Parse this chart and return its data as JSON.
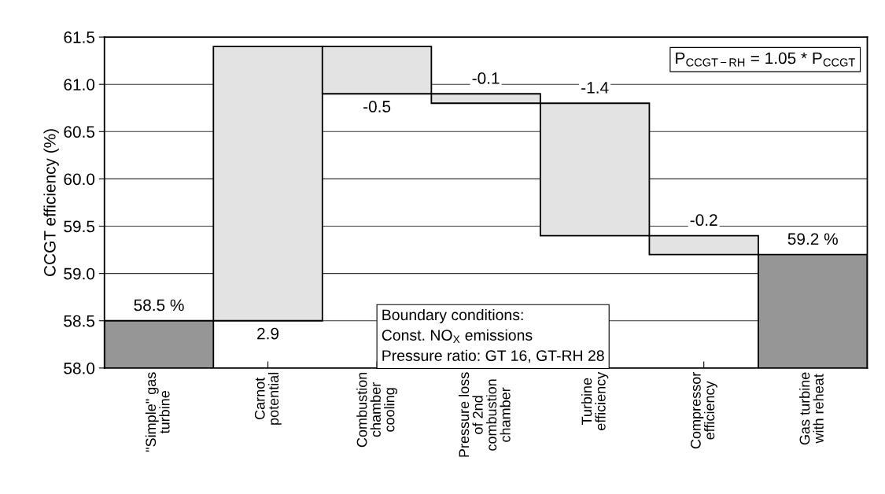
{
  "chart_data": {
    "type": "bar",
    "categories": [
      "\"Simple\" gas\nturbine",
      "Carnot\npotential",
      "Combustion\nchamber\ncooling",
      "Pressure loss\nof 2nd\ncombustion\nchamber",
      "Turbine\nefficiency",
      "Compressor\nefficiency",
      "Gas turbine\nwith reheat"
    ],
    "values": [
      58.5,
      2.9,
      -0.5,
      -0.1,
      -1.4,
      -0.2,
      59.2
    ],
    "base": [
      null,
      58.5,
      61.4,
      60.9,
      60.8,
      59.4,
      null
    ],
    "colors": [
      "#969696",
      "#e3e3e3",
      "#e3e3e3",
      "#e3e3e3",
      "#e3e3e3",
      "#e3e3e3",
      "#969696"
    ],
    "value_labels": [
      "58.5 %",
      "2.9",
      "-0.5",
      "-0.1",
      "-1.4",
      "-0.2",
      "59.2 %"
    ],
    "ylabel": "CCGT efficiency (%)",
    "ylim": [
      58.0,
      61.5
    ],
    "yticks": [
      {
        "value": 58.0,
        "label": "58.0"
      },
      {
        "value": 58.5,
        "label": "58.5"
      },
      {
        "value": 59.0,
        "label": "59.0"
      },
      {
        "value": 59.5,
        "label": "59.5"
      },
      {
        "value": 60.0,
        "label": "60.0"
      },
      {
        "value": 60.5,
        "label": "60.5"
      },
      {
        "value": 61.0,
        "label": "61.0"
      },
      {
        "value": 61.5,
        "label": "61.5"
      }
    ],
    "grid": "y",
    "annotations": [
      "P$_{CCGT−RH}$ = 1.05 * P$_{CCGT}$",
      "Boundary conditions:\nConst. NO$_{X}$ emissions\nPressure ratio: GT 16, GT-RH 28"
    ]
  }
}
